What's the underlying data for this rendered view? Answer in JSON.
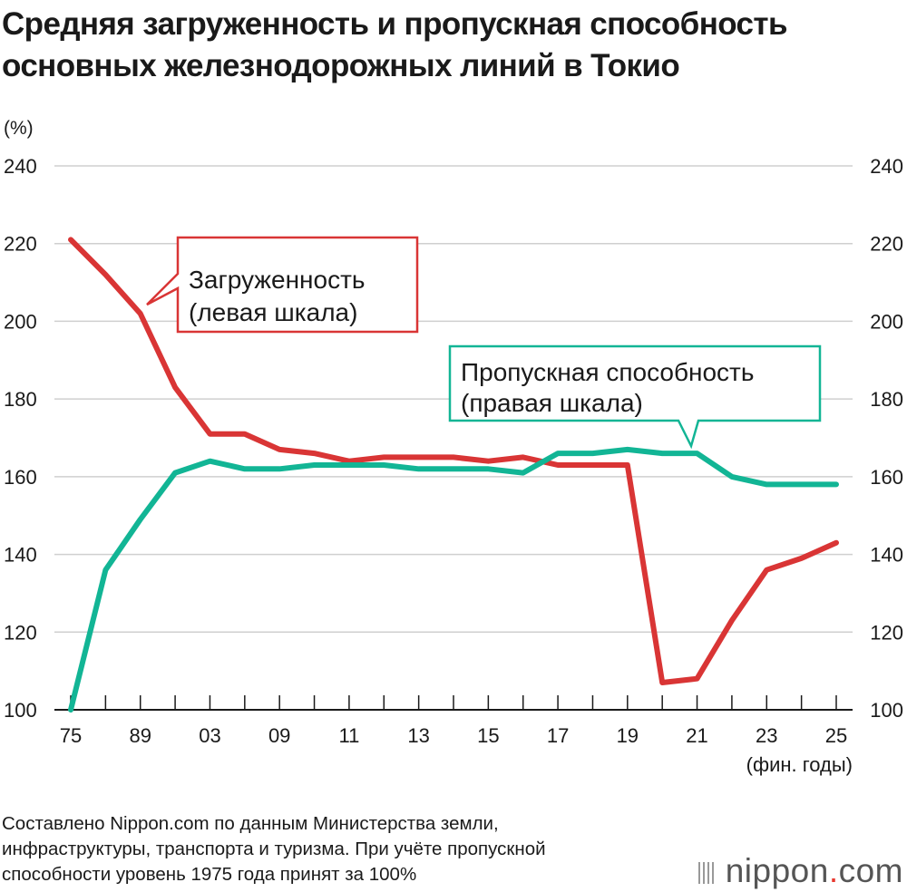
{
  "title": {
    "line1": "Средняя загруженность и пропускная способность",
    "line2": "основных железнодорожных линий в Токио"
  },
  "source": {
    "line1": "Составлено Nippon.com по данным Министерства земли,",
    "line2": "инфраструктуры, транспорта и туризма. При учёте пропускной",
    "line3": "способности уровень 1975 года принят за 100%"
  },
  "brand": {
    "name": "nippon",
    "dot": ".",
    "tld": "com"
  },
  "chart_data": {
    "type": "line",
    "ylabel": "(%)",
    "xlabel": "(фин. годы)",
    "ylim": [
      100,
      240
    ],
    "yticks": [
      100,
      120,
      140,
      160,
      180,
      200,
      220,
      240
    ],
    "xtick_labels": [
      "75",
      "89",
      "03",
      "09",
      "11",
      "13",
      "15",
      "17",
      "19",
      "21",
      "23",
      "25"
    ],
    "xtick_positions": [
      0,
      2,
      4,
      6,
      8,
      10,
      12,
      14,
      16,
      18,
      20,
      22
    ],
    "grid": true,
    "series": [
      {
        "name": "Загруженность",
        "name_line2": "(левая шкала)",
        "color": "#d93535",
        "points": [
          [
            0,
            221
          ],
          [
            1,
            212
          ],
          [
            2,
            202
          ],
          [
            3,
            183
          ],
          [
            4,
            171
          ],
          [
            5,
            171
          ],
          [
            6,
            167
          ],
          [
            7,
            166
          ],
          [
            8,
            164
          ],
          [
            9,
            165
          ],
          [
            10,
            165
          ],
          [
            11,
            165
          ],
          [
            12,
            164
          ],
          [
            13,
            165
          ],
          [
            14,
            163
          ],
          [
            15,
            163
          ],
          [
            16,
            163
          ],
          [
            17,
            107
          ],
          [
            18,
            108
          ],
          [
            19,
            123
          ],
          [
            20,
            136
          ],
          [
            21,
            139
          ],
          [
            22,
            143
          ]
        ]
      },
      {
        "name": "Пропускная способность",
        "name_line2": "(правая шкала)",
        "color": "#12b595",
        "points": [
          [
            0,
            100
          ],
          [
            1,
            136
          ],
          [
            2,
            149
          ],
          [
            3,
            161
          ],
          [
            4,
            164
          ],
          [
            5,
            162
          ],
          [
            6,
            162
          ],
          [
            7,
            163
          ],
          [
            8,
            163
          ],
          [
            9,
            163
          ],
          [
            10,
            162
          ],
          [
            11,
            162
          ],
          [
            12,
            162
          ],
          [
            13,
            161
          ],
          [
            14,
            166
          ],
          [
            15,
            166
          ],
          [
            16,
            167
          ],
          [
            17,
            166
          ],
          [
            18,
            166
          ],
          [
            19,
            160
          ],
          [
            20,
            158
          ],
          [
            21,
            158
          ],
          [
            22,
            158
          ]
        ]
      }
    ]
  }
}
